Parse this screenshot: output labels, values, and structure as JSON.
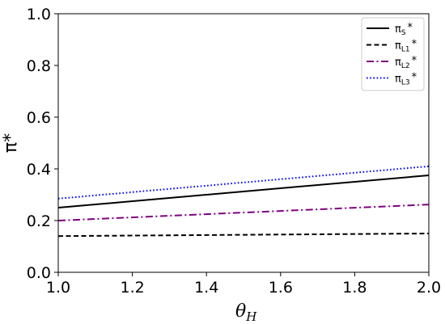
{
  "chart_data": {
    "type": "line",
    "xlabel": "θ_H",
    "xlabel_main": "θ",
    "xlabel_sub": "H",
    "ylabel": "π*",
    "xlim": [
      1.0,
      2.0
    ],
    "ylim": [
      0.0,
      1.0
    ],
    "xticks": [
      "1.0",
      "1.2",
      "1.4",
      "1.6",
      "1.8",
      "2.0"
    ],
    "yticks": [
      "0.0",
      "0.2",
      "0.4",
      "0.6",
      "0.8",
      "1.0"
    ],
    "grid": false,
    "legend_position": "top-right",
    "x": [
      1.0,
      2.0
    ],
    "series": [
      {
        "name": "πS*",
        "label_main": "π",
        "label_sub": "S",
        "label_sup": "*",
        "values": [
          0.25,
          0.375
        ],
        "color": "#000000",
        "dash": "solid"
      },
      {
        "name": "πL1*",
        "label_main": "π",
        "label_sub": "L1",
        "label_sup": "*",
        "values": [
          0.14,
          0.15
        ],
        "color": "#000000",
        "dash": "dashed"
      },
      {
        "name": "πL2*",
        "label_main": "π",
        "label_sub": "L2",
        "label_sup": "*",
        "values": [
          0.2,
          0.262
        ],
        "color": "#800080",
        "dash": "dashdot"
      },
      {
        "name": "πL3*",
        "label_main": "π",
        "label_sub": "L3",
        "label_sup": "*",
        "values": [
          0.285,
          0.41
        ],
        "color": "#0000ff",
        "dash": "dotted"
      }
    ]
  }
}
